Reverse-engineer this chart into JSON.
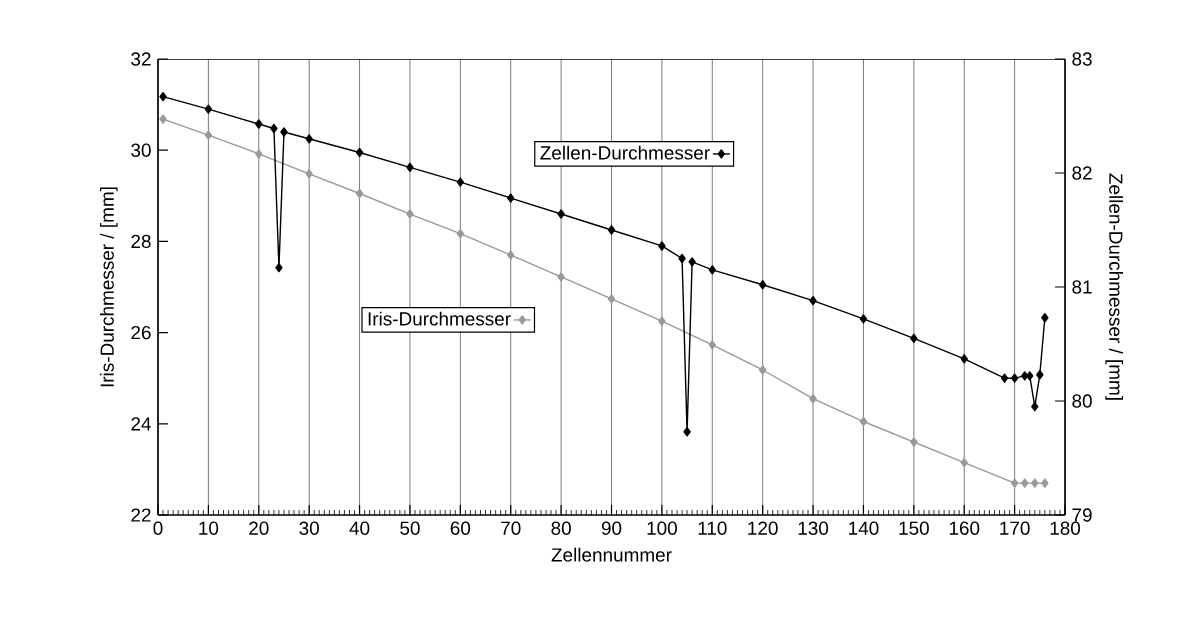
{
  "chart_data": {
    "type": "line",
    "xlabel": "Zellennummer",
    "ylabel": "Iris-Durchmesser / [mm]",
    "y2label": "Zellen-Durchmesser / [mm]",
    "xlim": [
      0,
      180
    ],
    "xticks": [
      0,
      10,
      20,
      30,
      40,
      50,
      60,
      70,
      80,
      90,
      100,
      110,
      120,
      130,
      140,
      150,
      160,
      170,
      180
    ],
    "ylim": [
      22,
      32
    ],
    "yticks": [
      22,
      24,
      26,
      28,
      30,
      32
    ],
    "y2lim": [
      79,
      83
    ],
    "y2ticks": [
      79,
      80,
      81,
      82,
      83
    ],
    "grid": "x",
    "legend": "top",
    "marker": "diamond",
    "line_style": "solid",
    "series": [
      {
        "name": "Zellen-Durchmesser",
        "color": "#000000",
        "axis": "y2",
        "x": [
          1,
          10,
          20,
          23,
          24,
          25,
          30,
          40,
          50,
          60,
          70,
          80,
          90,
          100,
          104,
          105,
          106,
          110,
          120,
          130,
          140,
          150,
          160,
          168,
          170,
          172,
          173,
          174,
          175,
          176
        ],
        "values": [
          82.67,
          82.56,
          82.43,
          82.39,
          81.17,
          82.36,
          82.3,
          82.18,
          82.05,
          81.92,
          81.78,
          81.64,
          81.5,
          81.36,
          81.25,
          79.73,
          81.22,
          81.15,
          81.02,
          80.88,
          80.72,
          80.55,
          80.37,
          80.2,
          80.2,
          80.22,
          80.22,
          79.95,
          80.23,
          80.73
        ]
      },
      {
        "name": "Iris-Durchmesser",
        "color": "#999999",
        "x": [
          1,
          10,
          20,
          30,
          40,
          50,
          60,
          70,
          80,
          90,
          100,
          110,
          120,
          130,
          140,
          150,
          160,
          170,
          172,
          174,
          176
        ],
        "values": [
          30.68,
          30.33,
          29.92,
          29.48,
          29.05,
          28.6,
          28.17,
          27.7,
          27.22,
          26.74,
          26.25,
          25.73,
          25.18,
          24.55,
          24.05,
          23.6,
          23.15,
          22.7,
          22.7,
          22.7,
          22.7
        ]
      }
    ]
  }
}
